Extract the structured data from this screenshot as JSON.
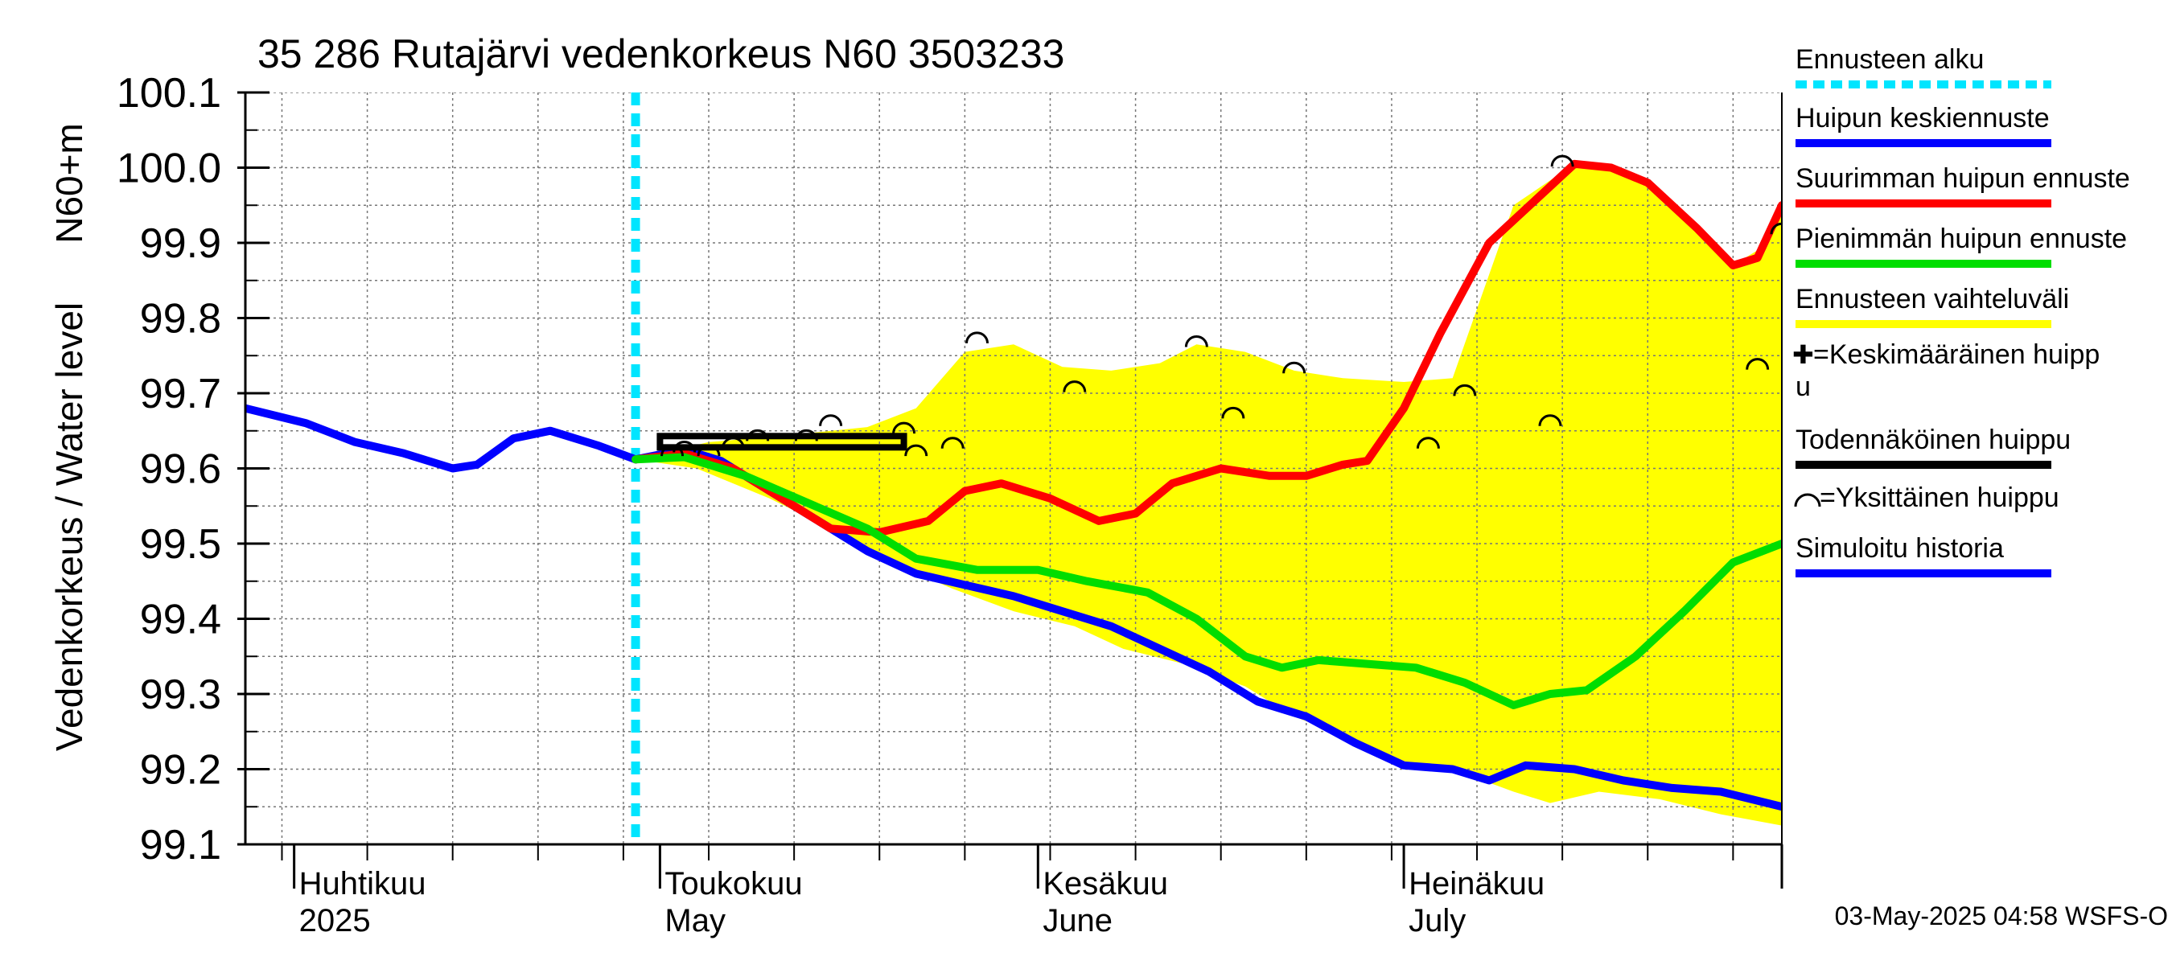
{
  "chart_data": {
    "type": "line",
    "title": "35 286 Rutajärvi vedenkorkeus N60 3503233",
    "ylabel_left": "Vedenkorkeus / Water level",
    "ylabel_right": "N60+m",
    "ylim": [
      99.1,
      100.1
    ],
    "yticks": [
      "99.1",
      "99.2",
      "99.3",
      "99.4",
      "99.5",
      "99.6",
      "99.7",
      "99.8",
      "99.9",
      "100.0",
      "100.1"
    ],
    "xlim": [
      "2025-03-28",
      "2025-08-01"
    ],
    "month_labels": [
      {
        "fi": "Huhtikuu",
        "en": "2025",
        "date": "2025-04-01"
      },
      {
        "fi": "Toukokuu",
        "en": "May",
        "date": "2025-05-01"
      },
      {
        "fi": "Kesäkuu",
        "en": "June",
        "date": "2025-06-01"
      },
      {
        "fi": "Heinäkuu",
        "en": "July",
        "date": "2025-07-01"
      }
    ],
    "forecast_start": "2025-04-29",
    "grid": true,
    "legend_position": "right",
    "legend": [
      {
        "label": "Ennusteen alku",
        "color": "#00e5ff",
        "style": "dotted"
      },
      {
        "label": "Huipun keskiennuste",
        "color": "#0000ff"
      },
      {
        "label": "Suurimman huipun ennuste",
        "color": "#ff0000"
      },
      {
        "label": "Pienimmän huipun ennuste",
        "color": "#00dd00"
      },
      {
        "label": "Ennusteen vaihteluväli",
        "color": "#ffff00"
      },
      {
        "label": "=Keskimääräinen huipp",
        "label2": "u",
        "symbol": "plus"
      },
      {
        "label": "Todennäköinen huippu",
        "color": "#000000"
      },
      {
        "label": "=Yksittäinen huippu",
        "symbol": "arc"
      },
      {
        "label": "Simuloitu historia",
        "color": "#0000ff"
      }
    ],
    "footer": "03-May-2025 04:58 WSFS-O",
    "series": [
      {
        "name": "Simuloitu historia",
        "color": "#0000ff",
        "points": [
          [
            "2025-03-28",
            99.68
          ],
          [
            "2025-04-02",
            99.66
          ],
          [
            "2025-04-06",
            99.635
          ],
          [
            "2025-04-10",
            99.62
          ],
          [
            "2025-04-14",
            99.6
          ],
          [
            "2025-04-16",
            99.605
          ],
          [
            "2025-04-19",
            99.64
          ],
          [
            "2025-04-22",
            99.65
          ],
          [
            "2025-04-26",
            99.63
          ],
          [
            "2025-04-29",
            99.612
          ]
        ]
      },
      {
        "name": "Huipun keskiennuste",
        "color": "#0000ff",
        "points": [
          [
            "2025-04-29",
            99.612
          ],
          [
            "2025-05-03",
            99.625
          ],
          [
            "2025-05-06",
            99.61
          ],
          [
            "2025-05-10",
            99.57
          ],
          [
            "2025-05-14",
            99.53
          ],
          [
            "2025-05-18",
            99.49
          ],
          [
            "2025-05-22",
            99.46
          ],
          [
            "2025-05-26",
            99.445
          ],
          [
            "2025-05-30",
            99.43
          ],
          [
            "2025-06-03",
            99.41
          ],
          [
            "2025-06-07",
            99.39
          ],
          [
            "2025-06-11",
            99.36
          ],
          [
            "2025-06-15",
            99.33
          ],
          [
            "2025-06-19",
            99.29
          ],
          [
            "2025-06-23",
            99.27
          ],
          [
            "2025-06-27",
            99.235
          ],
          [
            "2025-07-01",
            99.205
          ],
          [
            "2025-07-05",
            99.2
          ],
          [
            "2025-07-08",
            99.185
          ],
          [
            "2025-07-11",
            99.205
          ],
          [
            "2025-07-15",
            99.2
          ],
          [
            "2025-07-19",
            99.185
          ],
          [
            "2025-07-23",
            99.175
          ],
          [
            "2025-07-27",
            99.17
          ],
          [
            "2025-08-01",
            99.15
          ]
        ]
      },
      {
        "name": "Suurimman huipun ennuste",
        "color": "#ff0000",
        "points": [
          [
            "2025-04-29",
            99.612
          ],
          [
            "2025-05-03",
            99.62
          ],
          [
            "2025-05-07",
            99.6
          ],
          [
            "2025-05-11",
            99.56
          ],
          [
            "2025-05-15",
            99.52
          ],
          [
            "2025-05-19",
            99.515
          ],
          [
            "2025-05-23",
            99.53
          ],
          [
            "2025-05-26",
            99.57
          ],
          [
            "2025-05-29",
            99.58
          ],
          [
            "2025-06-02",
            99.56
          ],
          [
            "2025-06-06",
            99.53
          ],
          [
            "2025-06-09",
            99.54
          ],
          [
            "2025-06-12",
            99.58
          ],
          [
            "2025-06-16",
            99.6
          ],
          [
            "2025-06-20",
            99.59
          ],
          [
            "2025-06-23",
            99.59
          ],
          [
            "2025-06-26",
            99.605
          ],
          [
            "2025-06-28",
            99.61
          ],
          [
            "2025-07-01",
            99.68
          ],
          [
            "2025-07-04",
            99.78
          ],
          [
            "2025-07-08",
            99.9
          ],
          [
            "2025-07-12",
            99.96
          ],
          [
            "2025-07-15",
            100.005
          ],
          [
            "2025-07-18",
            100.0
          ],
          [
            "2025-07-21",
            99.98
          ],
          [
            "2025-07-25",
            99.92
          ],
          [
            "2025-07-28",
            99.87
          ],
          [
            "2025-07-30",
            99.88
          ],
          [
            "2025-08-01",
            99.95
          ]
        ]
      },
      {
        "name": "Pienimmän huipun ennuste",
        "color": "#00dd00",
        "points": [
          [
            "2025-04-29",
            99.612
          ],
          [
            "2025-05-03",
            99.615
          ],
          [
            "2025-05-08",
            99.59
          ],
          [
            "2025-05-13",
            99.555
          ],
          [
            "2025-05-18",
            99.52
          ],
          [
            "2025-05-22",
            99.48
          ],
          [
            "2025-05-27",
            99.465
          ],
          [
            "2025-06-01",
            99.465
          ],
          [
            "2025-06-05",
            99.45
          ],
          [
            "2025-06-10",
            99.435
          ],
          [
            "2025-06-14",
            99.4
          ],
          [
            "2025-06-18",
            99.35
          ],
          [
            "2025-06-21",
            99.335
          ],
          [
            "2025-06-24",
            99.345
          ],
          [
            "2025-06-28",
            99.34
          ],
          [
            "2025-07-02",
            99.335
          ],
          [
            "2025-07-06",
            99.315
          ],
          [
            "2025-07-10",
            99.285
          ],
          [
            "2025-07-13",
            99.3
          ],
          [
            "2025-07-16",
            99.305
          ],
          [
            "2025-07-20",
            99.35
          ],
          [
            "2025-07-24",
            99.41
          ],
          [
            "2025-07-28",
            99.475
          ],
          [
            "2025-08-01",
            99.5
          ]
        ]
      },
      {
        "name": "Todennäköinen huippu",
        "color": "#000000",
        "box": {
          "x0": "2025-05-01",
          "x1": "2025-05-21",
          "y0": 99.628,
          "y1": 99.643
        }
      }
    ],
    "band": {
      "name": "Ennusteen vaihteluväli",
      "color": "#ffff00",
      "upper": [
        [
          "2025-04-29",
          99.612
        ],
        [
          "2025-05-05",
          99.635
        ],
        [
          "2025-05-12",
          99.645
        ],
        [
          "2025-05-18",
          99.655
        ],
        [
          "2025-05-22",
          99.68
        ],
        [
          "2025-05-26",
          99.755
        ],
        [
          "2025-05-30",
          99.765
        ],
        [
          "2025-06-03",
          99.735
        ],
        [
          "2025-06-07",
          99.73
        ],
        [
          "2025-06-11",
          99.74
        ],
        [
          "2025-06-14",
          99.765
        ],
        [
          "2025-06-18",
          99.755
        ],
        [
          "2025-06-22",
          99.73
        ],
        [
          "2025-06-26",
          99.72
        ],
        [
          "2025-07-01",
          99.715
        ],
        [
          "2025-07-05",
          99.72
        ],
        [
          "2025-07-10",
          99.95
        ],
        [
          "2025-07-15",
          100.005
        ],
        [
          "2025-07-18",
          100.0
        ],
        [
          "2025-07-21",
          99.98
        ],
        [
          "2025-07-25",
          99.92
        ],
        [
          "2025-07-28",
          99.87
        ],
        [
          "2025-07-30",
          99.89
        ],
        [
          "2025-08-01",
          99.95
        ]
      ],
      "lower": [
        [
          "2025-04-29",
          99.612
        ],
        [
          "2025-05-04",
          99.6
        ],
        [
          "2025-05-10",
          99.56
        ],
        [
          "2025-05-15",
          99.52
        ],
        [
          "2025-05-20",
          99.475
        ],
        [
          "2025-05-25",
          99.44
        ],
        [
          "2025-05-30",
          99.41
        ],
        [
          "2025-06-04",
          99.39
        ],
        [
          "2025-06-08",
          99.36
        ],
        [
          "2025-06-13",
          99.34
        ],
        [
          "2025-06-18",
          99.31
        ],
        [
          "2025-06-22",
          99.27
        ],
        [
          "2025-06-26",
          99.245
        ],
        [
          "2025-07-01",
          99.21
        ],
        [
          "2025-07-05",
          99.2
        ],
        [
          "2025-07-10",
          99.17
        ],
        [
          "2025-07-13",
          99.155
        ],
        [
          "2025-07-17",
          99.17
        ],
        [
          "2025-07-22",
          99.16
        ],
        [
          "2025-07-27",
          99.14
        ],
        [
          "2025-08-01",
          99.125
        ]
      ]
    },
    "individual_peaks": [
      [
        "2025-05-02",
        99.625
      ],
      [
        "2025-05-03",
        99.63
      ],
      [
        "2025-05-05",
        99.625
      ],
      [
        "2025-05-07",
        99.635
      ],
      [
        "2025-05-09",
        99.645
      ],
      [
        "2025-05-13",
        99.645
      ],
      [
        "2025-05-15",
        99.665
      ],
      [
        "2025-05-21",
        99.655
      ],
      [
        "2025-05-22",
        99.625
      ],
      [
        "2025-05-25",
        99.635
      ],
      [
        "2025-05-27",
        99.775
      ],
      [
        "2025-06-04",
        99.71
      ],
      [
        "2025-06-14",
        99.77
      ],
      [
        "2025-06-17",
        99.675
      ],
      [
        "2025-06-22",
        99.735
      ],
      [
        "2025-07-03",
        99.635
      ],
      [
        "2025-07-06",
        99.705
      ],
      [
        "2025-07-13",
        99.665
      ],
      [
        "2025-07-14",
        100.01
      ],
      [
        "2025-07-30",
        99.74
      ],
      [
        "2025-08-01",
        99.92
      ]
    ]
  }
}
